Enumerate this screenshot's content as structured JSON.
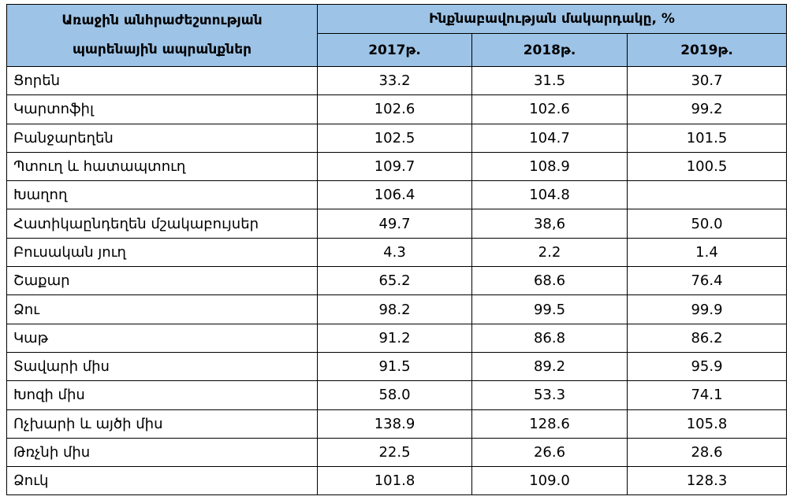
{
  "table": {
    "header": {
      "item": "Առաջին անհրաժեշտության պարենային ապրանքներ",
      "group": "Ինքնաբավության մակարդակը, %",
      "years": [
        "2017թ.",
        "2018թ.",
        "2019թ."
      ]
    },
    "rows": [
      [
        "Ցորեն",
        "33.2",
        "31.5",
        "30.7"
      ],
      [
        "Կարտոֆիլ",
        "102.6",
        "102.6",
        "99.2"
      ],
      [
        "Բանջարեղեն",
        "102.5",
        "104.7",
        "101.5"
      ],
      [
        "Պտուղ և հատապտուղ",
        "109.7",
        "108.9",
        "100.5"
      ],
      [
        "Խաղող",
        "106.4",
        "104.8",
        null
      ],
      [
        "Հատիկաընդեղեն մշակաբույսեր",
        "49.7",
        "38,6",
        "50.0"
      ],
      [
        "Բուսական յուղ",
        "4.3",
        "2.2",
        "1.4"
      ],
      [
        "Շաքար",
        "65.2",
        "68.6",
        "76.4"
      ],
      [
        "Ձու",
        "98.2",
        "99.5",
        "99.9"
      ],
      [
        "Կաթ",
        "91.2",
        "86.8",
        "86.2"
      ],
      [
        "Տավարի միս",
        "91.5",
        "89.2",
        "95.9"
      ],
      [
        "Խոզի միս",
        "58.0",
        "53.3",
        "74.1"
      ],
      [
        "Ոչխարի և այծի միս",
        "138.9",
        "128.6",
        "105.8"
      ],
      [
        "Թռչնի միս",
        "22.5",
        "26.6",
        "28.6"
      ],
      [
        "Ձուկ",
        "101.8",
        "109.0",
        "128.3"
      ]
    ]
  }
}
